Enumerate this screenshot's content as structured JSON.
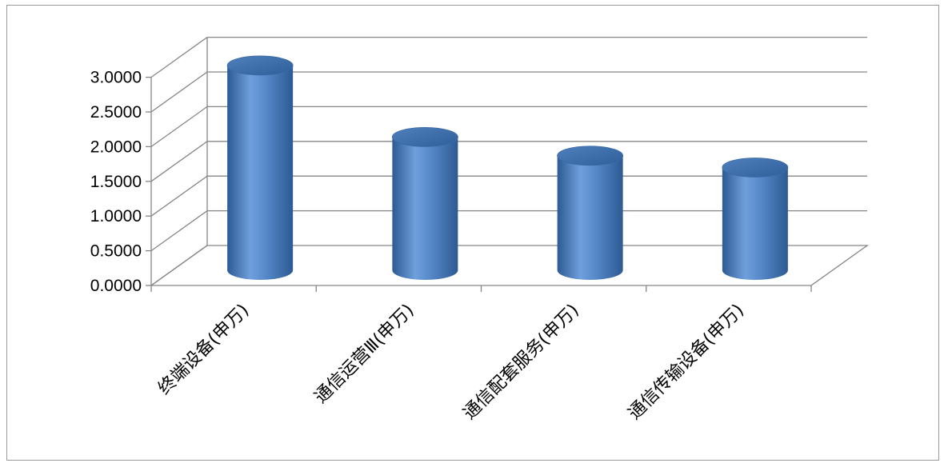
{
  "chart_data": {
    "type": "bar",
    "style": "3d-cylinder",
    "categories": [
      "终端设备(申万)",
      "通信运营Ⅲ(申万)",
      "通信配套服务(申万)",
      "通信传输设备(申万)"
    ],
    "values": [
      2.95,
      1.92,
      1.65,
      1.48
    ],
    "ylim": [
      0,
      3.0
    ],
    "yticks": [
      "0.0000",
      "0.5000",
      "1.0000",
      "1.5000",
      "2.0000",
      "2.5000",
      "3.0000"
    ],
    "title": "",
    "xlabel": "",
    "ylabel": "",
    "grid": true,
    "legend": "none",
    "colors": {
      "bar_light": "#6f9fdc",
      "bar_mid": "#4a7ebf",
      "bar_dark": "#2d5a93",
      "bar_top": "#3f6fa8",
      "grid": "#868686",
      "axis": "#868686"
    }
  }
}
